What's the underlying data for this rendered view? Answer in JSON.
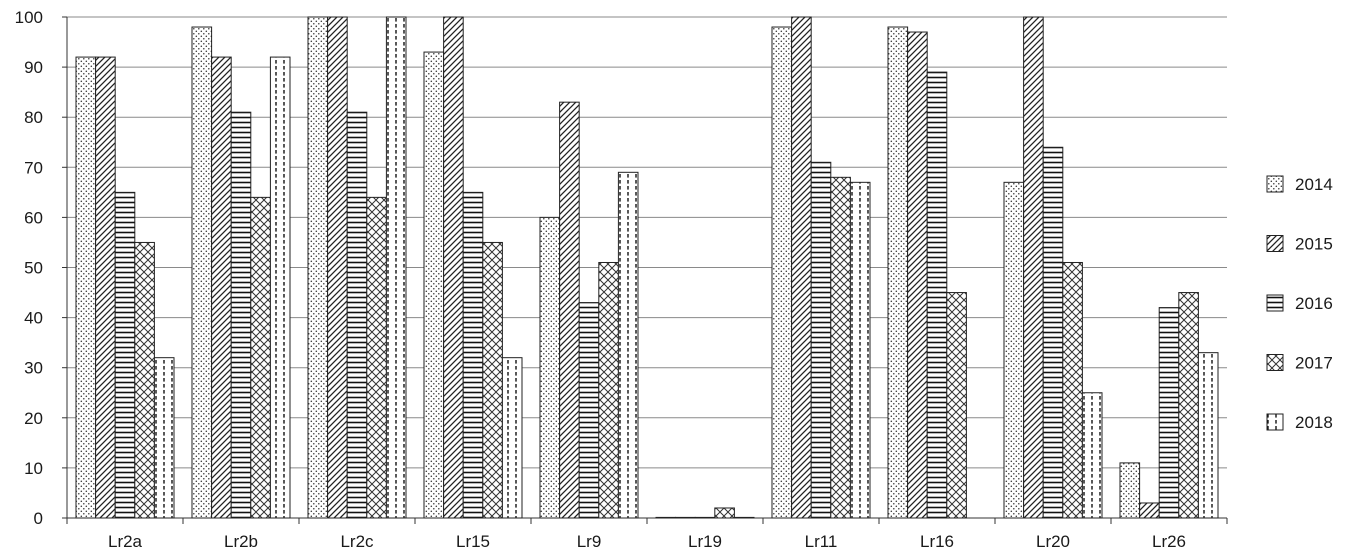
{
  "chart_data": {
    "type": "bar",
    "categories": [
      "Lr2a",
      "Lr2b",
      "Lr2c",
      "Lr15",
      "Lr9",
      "Lr19",
      "Lr11",
      "Lr16",
      "Lr20",
      "Lr26"
    ],
    "series": [
      {
        "name": "2014",
        "pattern": "dots",
        "values": [
          92,
          98,
          100,
          93,
          60,
          0,
          98,
          98,
          67,
          11
        ]
      },
      {
        "name": "2015",
        "pattern": "diagonal",
        "values": [
          92,
          92,
          100,
          100,
          83,
          0,
          100,
          97,
          100,
          3
        ]
      },
      {
        "name": "2016",
        "pattern": "horizontal",
        "values": [
          65,
          81,
          81,
          65,
          43,
          0,
          71,
          89,
          74,
          42
        ]
      },
      {
        "name": "2017",
        "pattern": "crosshatch",
        "values": [
          55,
          64,
          64,
          55,
          51,
          2,
          68,
          45,
          51,
          45
        ]
      },
      {
        "name": "2018",
        "pattern": "dashed-vertical",
        "values": [
          32,
          92,
          100,
          32,
          69,
          0,
          67,
          null,
          25,
          33
        ]
      }
    ],
    "yticks": [
      "0",
      "10",
      "20",
      "30",
      "40",
      "50",
      "60",
      "70",
      "80",
      "90",
      "100"
    ],
    "ylim": [
      0,
      100
    ],
    "grid": true,
    "legend_position": "right",
    "title": "",
    "xlabel": "",
    "ylabel": ""
  }
}
